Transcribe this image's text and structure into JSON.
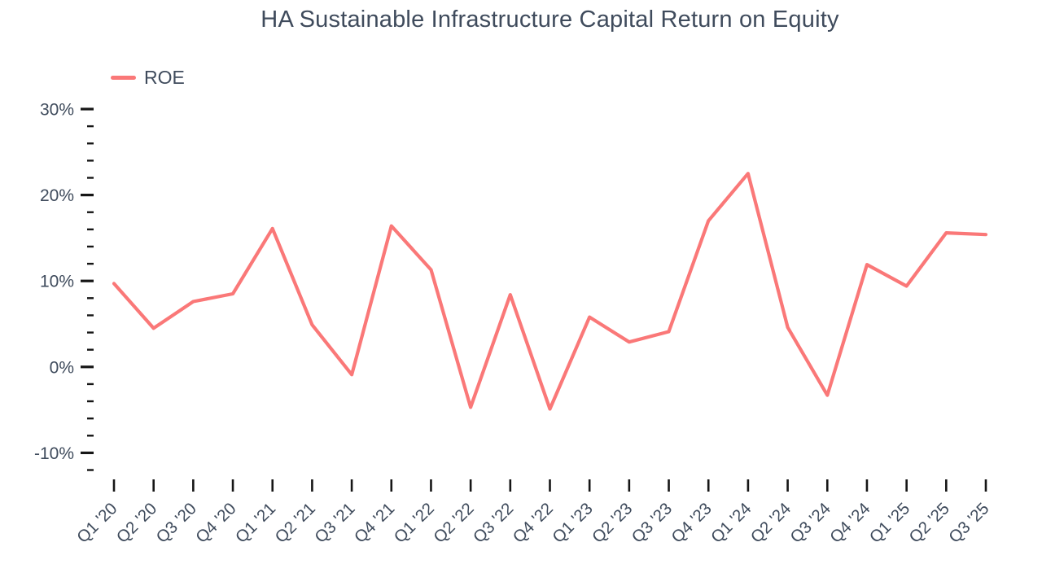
{
  "chart_data": {
    "type": "line",
    "title": "HA Sustainable Infrastructure Capital Return on Equity",
    "xlabel": "",
    "ylabel": "",
    "grid": false,
    "legend_position": "top-left",
    "categories": [
      "Q1 '20",
      "Q2 '20",
      "Q3 '20",
      "Q4 '20",
      "Q1 '21",
      "Q2 '21",
      "Q3 '21",
      "Q4 '21",
      "Q1 '22",
      "Q2 '22",
      "Q3 '22",
      "Q4 '22",
      "Q1 '23",
      "Q2 '23",
      "Q3 '23",
      "Q4 '23",
      "Q1 '24",
      "Q2 '24",
      "Q3 '24",
      "Q4 '24",
      "Q1 '25",
      "Q2 '25",
      "Q3 '25"
    ],
    "series": [
      {
        "name": "ROE",
        "color": "#fa7878",
        "values": [
          9.7,
          4.5,
          7.6,
          8.5,
          16.1,
          4.9,
          -0.9,
          16.4,
          11.3,
          -4.7,
          8.4,
          -4.9,
          5.8,
          2.9,
          4.1,
          17.0,
          22.5,
          4.6,
          -3.3,
          11.9,
          9.4,
          15.6,
          15.4
        ]
      }
    ],
    "y_axis": {
      "ticks": [
        {
          "value": 30,
          "label": "30%"
        },
        {
          "value": 20,
          "label": "20%"
        },
        {
          "value": 10,
          "label": "10%"
        },
        {
          "value": 0,
          "label": "0%"
        },
        {
          "value": -10,
          "label": "-10%"
        }
      ],
      "minor_step": 2,
      "min": -12,
      "max": 30
    },
    "colors": {
      "line": "#fa7878",
      "text": "#3f4b5c",
      "tick": "#161616"
    }
  }
}
